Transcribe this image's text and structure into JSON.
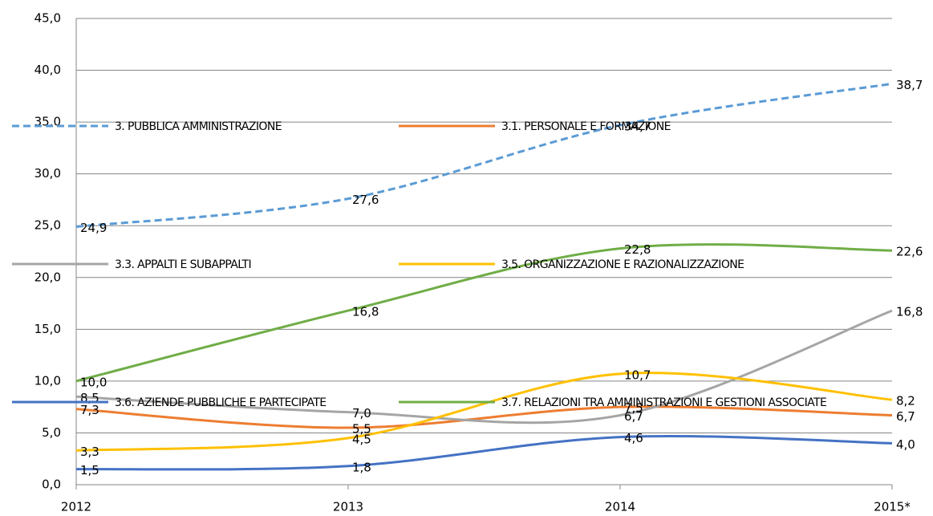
{
  "chart_data": {
    "type": "line",
    "categories": [
      "2012",
      "2013",
      "2014",
      "2015*"
    ],
    "ylim": [
      0,
      45
    ],
    "yticks": [
      {
        "value": 0,
        "label": "0,0"
      },
      {
        "value": 5,
        "label": "5,0"
      },
      {
        "value": 10,
        "label": "10,0"
      },
      {
        "value": 15,
        "label": "15,0"
      },
      {
        "value": 20,
        "label": "20,0"
      },
      {
        "value": 25,
        "label": "25,0"
      },
      {
        "value": 30,
        "label": "30,0"
      },
      {
        "value": 35,
        "label": "35,0"
      },
      {
        "value": 40,
        "label": "40,0"
      },
      {
        "value": 45,
        "label": "45,0"
      }
    ],
    "grid": true,
    "series": [
      {
        "name": "3. PUBBLICA AMMINISTRAZIONE",
        "color": "#5b9bd5",
        "dashed": true,
        "values": [
          24.9,
          27.6,
          34.7,
          38.7
        ],
        "value_labels": [
          "24,9",
          "27,6",
          "34,7",
          "38,7"
        ]
      },
      {
        "name": "3.1. PERSONALE E FORMAZIONE",
        "color": "#ed7d31",
        "values": [
          7.3,
          5.5,
          7.5,
          6.7
        ],
        "value_labels": [
          "7,3",
          "5,5",
          "7,5",
          "6,7"
        ]
      },
      {
        "name": "3.3. APPALTI E SUBAPPALTI",
        "color": "#a5a5a5",
        "values": [
          8.5,
          7.0,
          6.7,
          16.8
        ],
        "value_labels": [
          "8,5",
          "7,0",
          "6,7",
          "16,8"
        ]
      },
      {
        "name": "3.5. ORGANIZZAZIONE E RAZIONALIZZAZIONE",
        "color": "#ffc000",
        "values": [
          3.3,
          4.5,
          10.7,
          8.2
        ],
        "value_labels": [
          "3,3",
          "4,5",
          "10,7",
          "8,2"
        ]
      },
      {
        "name": "3.6. AZIENDE PUBBLICHE E PARTECIPATE",
        "color": "#4472c4",
        "values": [
          1.5,
          1.8,
          4.6,
          4.0
        ],
        "value_labels": [
          "1,5",
          "1,8",
          "4,6",
          "4,0"
        ]
      },
      {
        "name": "3.7. RELAZIONI TRA AMMINISTRAZIONI E GESTIONI ASSOCIATE",
        "color": "#70ad47",
        "values": [
          10.0,
          16.8,
          22.8,
          22.6
        ],
        "value_labels": [
          "10,0",
          "16,8",
          "22,8",
          "22,6"
        ]
      }
    ]
  }
}
